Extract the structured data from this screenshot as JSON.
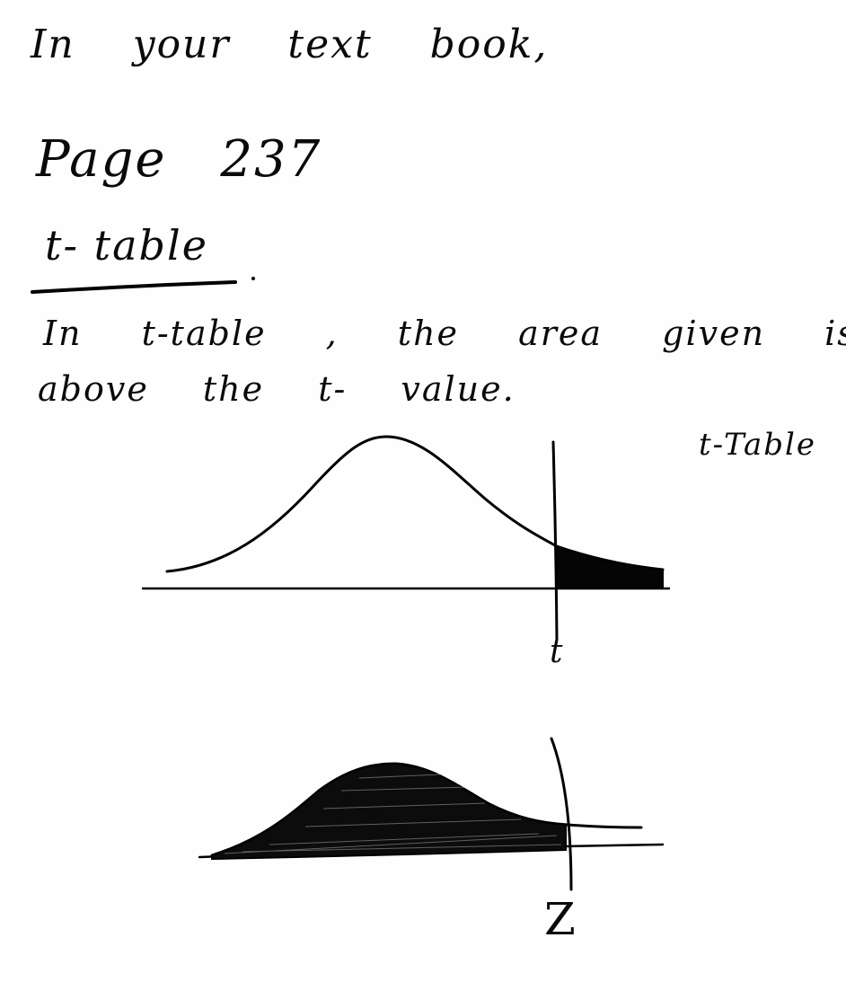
{
  "notes": {
    "line1": "In your text book,",
    "line2": "Page 237",
    "line3": "t- table",
    "line4": "In t-table , the area given is",
    "line5": "above the t- value."
  },
  "figure_top": {
    "side_label": "t-Table",
    "axis_label": "t"
  },
  "figure_bottom": {
    "axis_label": "Z"
  },
  "colors": {
    "ink": "#000000",
    "paper": "#ffffff"
  }
}
